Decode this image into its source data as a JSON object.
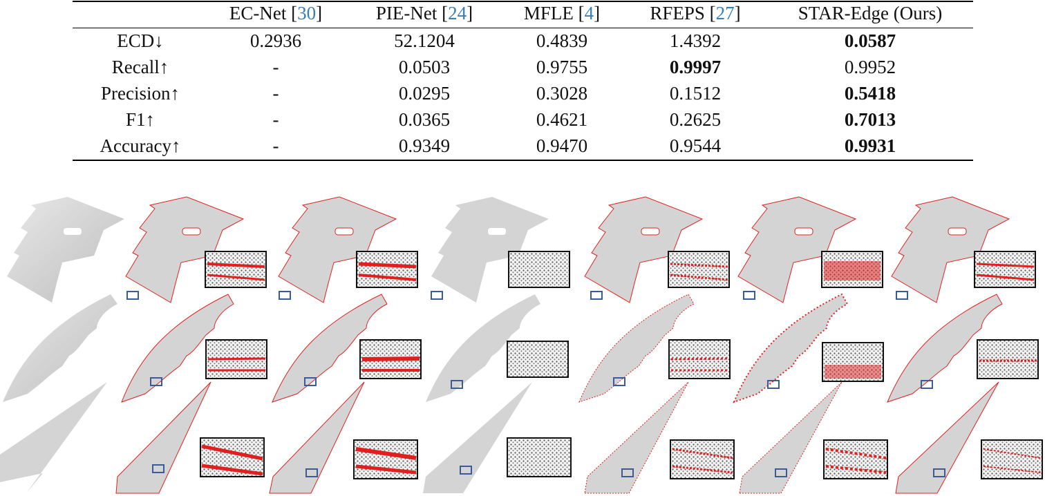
{
  "table": {
    "columns": [
      {
        "name": "EC-Net",
        "ref": "30"
      },
      {
        "name": "PIE-Net",
        "ref": "24"
      },
      {
        "name": "MFLE",
        "ref": "4"
      },
      {
        "name": "RFEPS",
        "ref": "27"
      },
      {
        "name": "STAR-Edge (Ours)",
        "ref": ""
      }
    ],
    "rows": [
      {
        "metric": "ECD↓",
        "values": [
          "0.2936",
          "52.1204",
          "0.4839",
          "1.4392",
          "0.0587"
        ],
        "best": 4
      },
      {
        "metric": "Recall↑",
        "values": [
          "-",
          "0.0503",
          "0.9755",
          "0.9997",
          "0.9952"
        ],
        "best": 3
      },
      {
        "metric": "Precision↑",
        "values": [
          "-",
          "0.0295",
          "0.3028",
          "0.1512",
          "0.5418"
        ],
        "best": 4
      },
      {
        "metric": "F1↑",
        "values": [
          "-",
          "0.0365",
          "0.4621",
          "0.2625",
          "0.7013"
        ],
        "best": 4
      },
      {
        "metric": "Accuracy↑",
        "values": [
          "-",
          "0.9349",
          "0.9470",
          "0.9544",
          "0.9931"
        ],
        "best": 4
      }
    ]
  },
  "colors": {
    "edge": "#e02020",
    "shape": "#d4d4d4",
    "zoom_box": "#3b5a9a",
    "ref": "#3a7fb3"
  }
}
